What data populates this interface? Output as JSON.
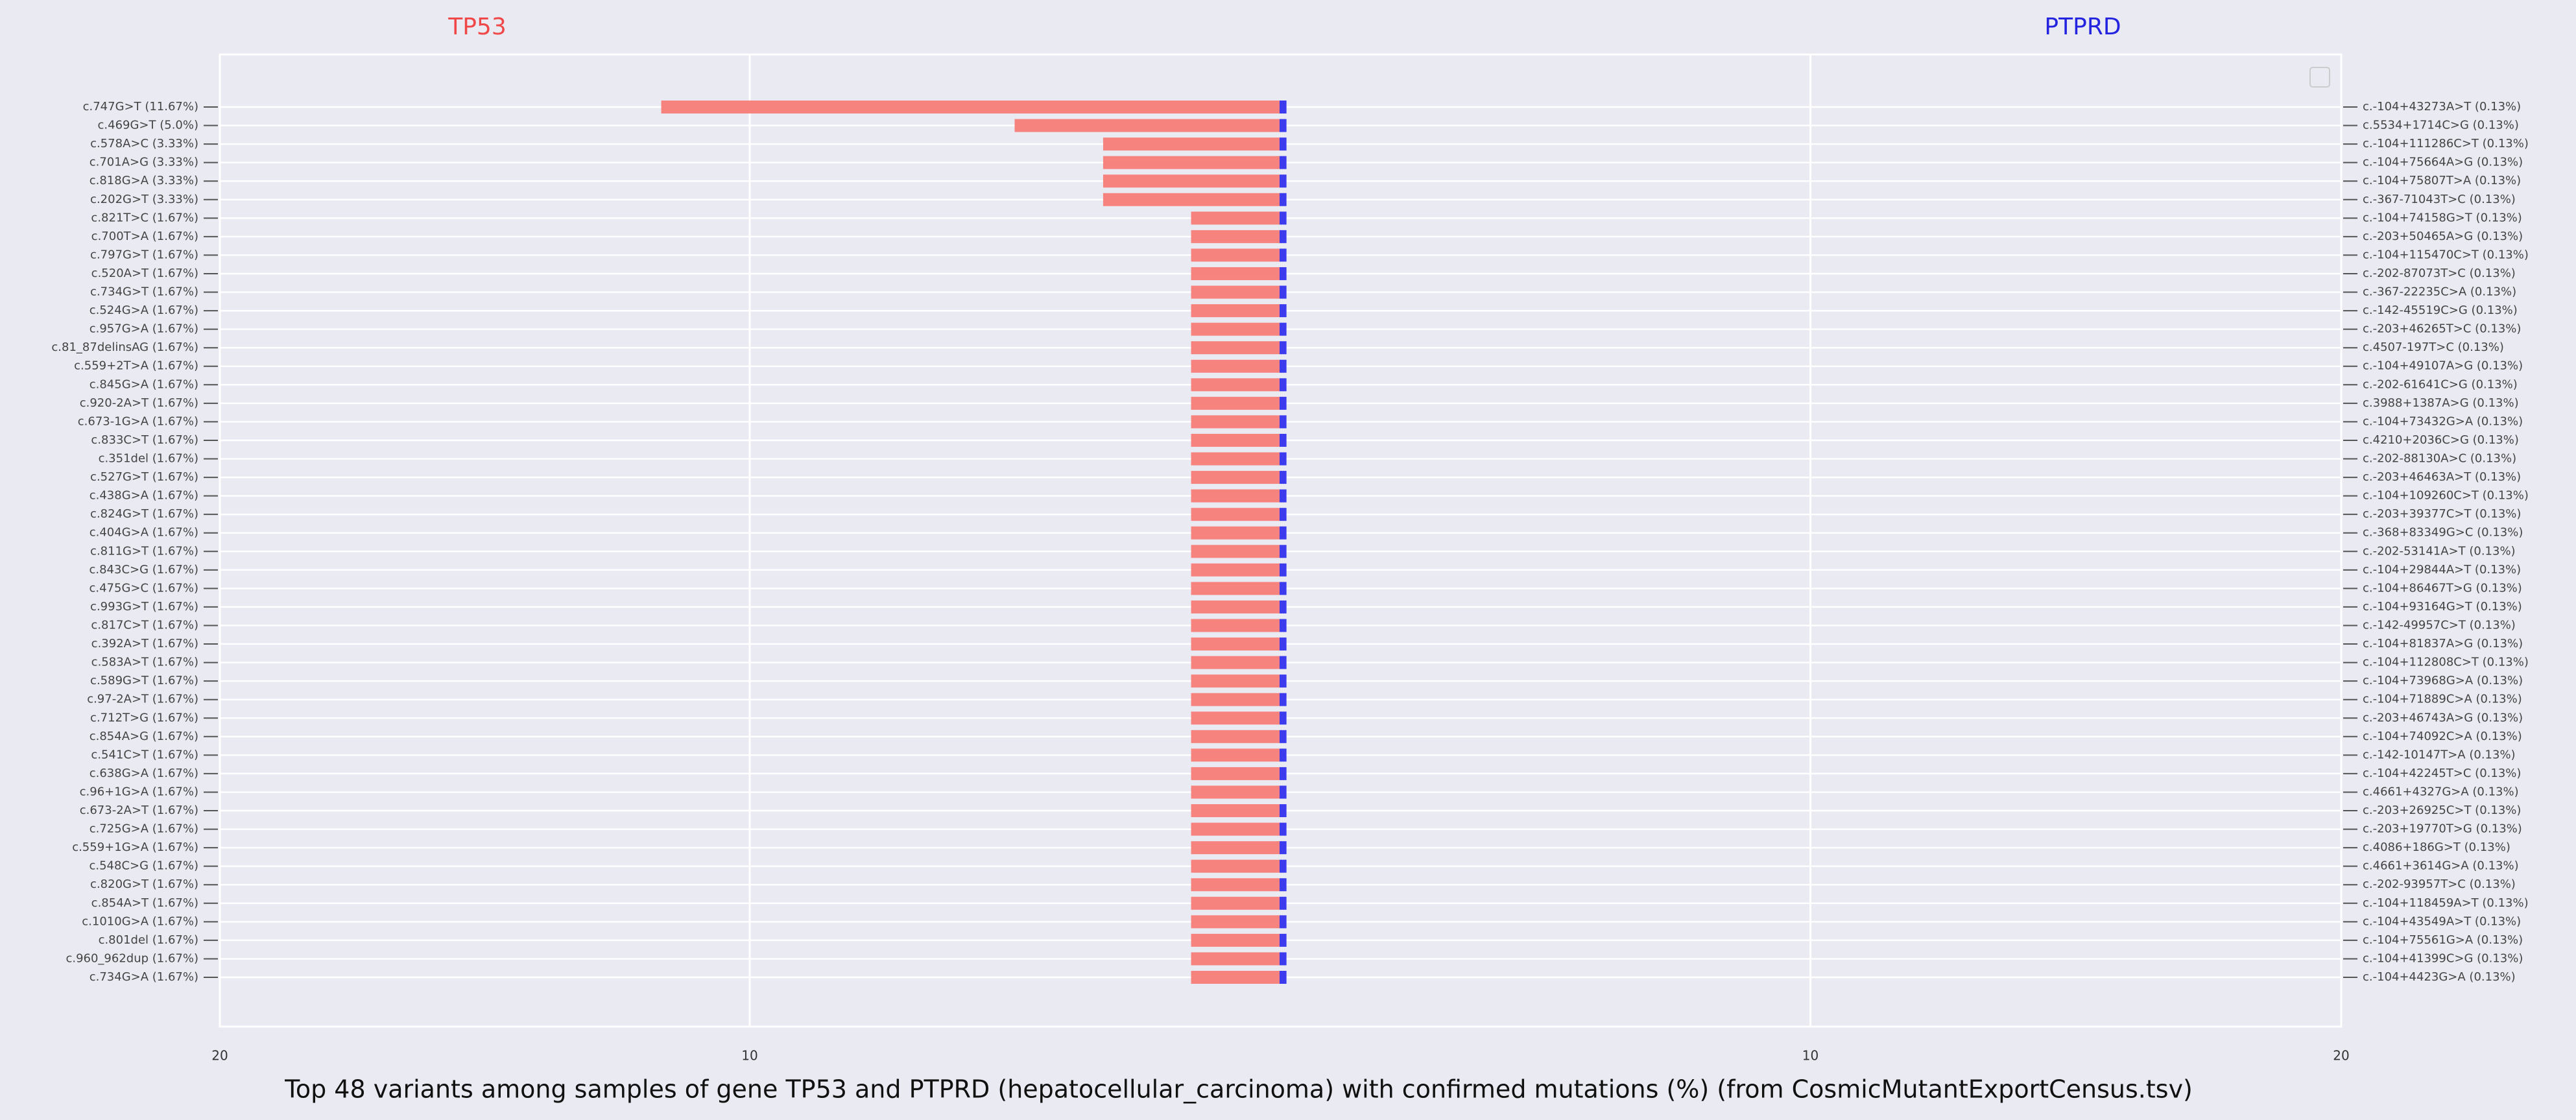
{
  "title": "Top 48 variants among samples of gene TP53 and PTPRD (hepatocellular_carcinoma) with confirmed mutations (%) (from CosmicMutantExportCensus.tsv)",
  "chart_data": [
    {
      "type": "barh",
      "title": "TP53",
      "title_color": "#f04848",
      "color": "#f7837e",
      "categories": [
        "c.747G>T (11.67%)",
        "c.469G>T (5.0%)",
        "c.578A>C (3.33%)",
        "c.701A>G (3.33%)",
        "c.818G>A (3.33%)",
        "c.202G>T (3.33%)",
        "c.821T>C (1.67%)",
        "c.700T>A (1.67%)",
        "c.797G>T (1.67%)",
        "c.520A>T (1.67%)",
        "c.734G>T (1.67%)",
        "c.524G>A (1.67%)",
        "c.957G>A (1.67%)",
        "c.81_87delinsAG (1.67%)",
        "c.559+2T>A (1.67%)",
        "c.845G>A (1.67%)",
        "c.920-2A>T (1.67%)",
        "c.673-1G>A (1.67%)",
        "c.833C>T (1.67%)",
        "c.351del (1.67%)",
        "c.527G>T (1.67%)",
        "c.438G>A (1.67%)",
        "c.824G>T (1.67%)",
        "c.404G>A (1.67%)",
        "c.811G>T (1.67%)",
        "c.843C>G (1.67%)",
        "c.475G>C (1.67%)",
        "c.993G>T (1.67%)",
        "c.817C>T (1.67%)",
        "c.392A>T (1.67%)",
        "c.583A>T (1.67%)",
        "c.589G>T (1.67%)",
        "c.97-2A>T (1.67%)",
        "c.712T>G (1.67%)",
        "c.854A>G (1.67%)",
        "c.541C>T (1.67%)",
        "c.638G>A (1.67%)",
        "c.96+1G>A (1.67%)",
        "c.673-2A>T (1.67%)",
        "c.725G>A (1.67%)",
        "c.559+1G>A (1.67%)",
        "c.548C>G (1.67%)",
        "c.820G>T (1.67%)",
        "c.854A>T (1.67%)",
        "c.1010G>A (1.67%)",
        "c.801del (1.67%)",
        "c.960_962dup (1.67%)",
        "c.734G>A (1.67%)"
      ],
      "values": [
        11.67,
        5.0,
        3.33,
        3.33,
        3.33,
        3.33,
        1.67,
        1.67,
        1.67,
        1.67,
        1.67,
        1.67,
        1.67,
        1.67,
        1.67,
        1.67,
        1.67,
        1.67,
        1.67,
        1.67,
        1.67,
        1.67,
        1.67,
        1.67,
        1.67,
        1.67,
        1.67,
        1.67,
        1.67,
        1.67,
        1.67,
        1.67,
        1.67,
        1.67,
        1.67,
        1.67,
        1.67,
        1.67,
        1.67,
        1.67,
        1.67,
        1.67,
        1.67,
        1.67,
        1.67,
        1.67,
        1.67,
        1.67
      ],
      "xlim": [
        20,
        0
      ],
      "xticks": [
        20,
        10
      ],
      "grid": true
    },
    {
      "type": "barh",
      "title": "PTPRD",
      "title_color": "#2424e0",
      "color": "#3c3cee",
      "categories": [
        "c.-104+43273A>T (0.13%)",
        "c.5534+1714C>G (0.13%)",
        "c.-104+111286C>T (0.13%)",
        "c.-104+75664A>G (0.13%)",
        "c.-104+75807T>A (0.13%)",
        "c.-367-71043T>C (0.13%)",
        "c.-104+74158G>T (0.13%)",
        "c.-203+50465A>G (0.13%)",
        "c.-104+115470C>T (0.13%)",
        "c.-202-87073T>C (0.13%)",
        "c.-367-22235C>A (0.13%)",
        "c.-142-45519C>G (0.13%)",
        "c.-203+46265T>C (0.13%)",
        "c.4507-197T>C (0.13%)",
        "c.-104+49107A>G (0.13%)",
        "c.-202-61641C>G (0.13%)",
        "c.3988+1387A>G (0.13%)",
        "c.-104+73432G>A (0.13%)",
        "c.4210+2036C>G (0.13%)",
        "c.-202-88130A>C (0.13%)",
        "c.-203+46463A>T (0.13%)",
        "c.-104+109260C>T (0.13%)",
        "c.-203+39377C>T (0.13%)",
        "c.-368+83349G>C (0.13%)",
        "c.-202-53141A>T (0.13%)",
        "c.-104+29844A>T (0.13%)",
        "c.-104+86467T>G (0.13%)",
        "c.-104+93164G>T (0.13%)",
        "c.-142-49957C>T (0.13%)",
        "c.-104+81837A>G (0.13%)",
        "c.-104+112808C>T (0.13%)",
        "c.-104+73968G>A (0.13%)",
        "c.-104+71889C>A (0.13%)",
        "c.-203+46743A>G (0.13%)",
        "c.-104+74092C>A (0.13%)",
        "c.-142-10147T>A (0.13%)",
        "c.-104+42245T>C (0.13%)",
        "c.4661+4327G>A (0.13%)",
        "c.-203+26925C>T (0.13%)",
        "c.-203+19770T>G (0.13%)",
        "c.4086+186G>T (0.13%)",
        "c.4661+3614G>A (0.13%)",
        "c.-202-93957T>C (0.13%)",
        "c.-104+118459A>T (0.13%)",
        "c.-104+43549A>T (0.13%)",
        "c.-104+75561G>A (0.13%)",
        "c.-104+41399C>G (0.13%)",
        "c.-104+4423G>A (0.13%)"
      ],
      "values": [
        0.13,
        0.13,
        0.13,
        0.13,
        0.13,
        0.13,
        0.13,
        0.13,
        0.13,
        0.13,
        0.13,
        0.13,
        0.13,
        0.13,
        0.13,
        0.13,
        0.13,
        0.13,
        0.13,
        0.13,
        0.13,
        0.13,
        0.13,
        0.13,
        0.13,
        0.13,
        0.13,
        0.13,
        0.13,
        0.13,
        0.13,
        0.13,
        0.13,
        0.13,
        0.13,
        0.13,
        0.13,
        0.13,
        0.13,
        0.13,
        0.13,
        0.13,
        0.13,
        0.13,
        0.13,
        0.13,
        0.13,
        0.13
      ],
      "xlim": [
        0,
        20
      ],
      "xticks": [
        10,
        20
      ],
      "grid": true
    }
  ]
}
